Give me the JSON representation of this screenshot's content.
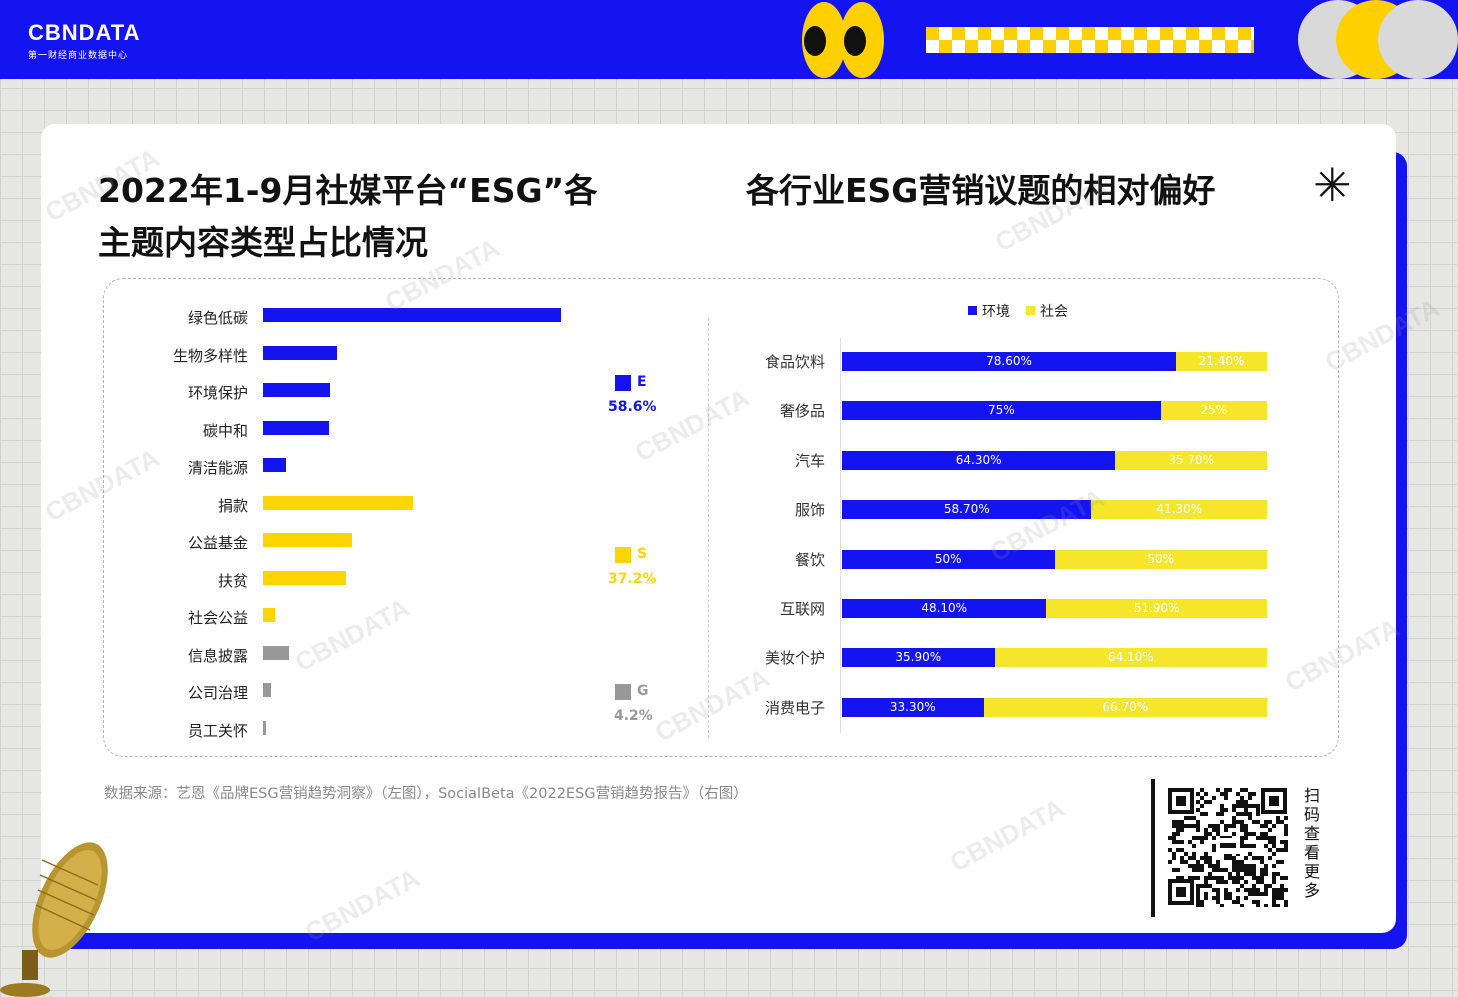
{
  "header": {
    "brand": "CBNDATA",
    "brand_sub": "第一财经商业数据中心"
  },
  "left_title_line1": "2022年1-9月社媒平台“ESG”各",
  "left_title_line2": "主题内容类型占比情况",
  "right_title": "各行业ESG营销议题的相对偏好",
  "chart_data": [
    {
      "type": "bar",
      "orientation": "horizontal",
      "title": "2022年1-9月社媒平台“ESG”各主题内容类型占比情况",
      "categories": [
        "绿色低碳",
        "生物多样性",
        "环境保护",
        "碳中和",
        "清洁能源",
        "捐款",
        "公益基金",
        "扶贫",
        "社会公益",
        "信息披露",
        "公司治理",
        "员工关怀"
      ],
      "values": [
        23.0,
        5.7,
        5.2,
        5.1,
        1.8,
        11.6,
        6.9,
        6.4,
        0.9,
        2.0,
        0.6,
        0.2
      ],
      "groups": [
        "E",
        "E",
        "E",
        "E",
        "E",
        "S",
        "S",
        "S",
        "S",
        "G",
        "G",
        "G"
      ],
      "colors": {
        "E": "#1414f0",
        "S": "#ffd500",
        "G": "#999999"
      },
      "group_totals": [
        {
          "name": "E",
          "value": "58.6%",
          "color": "#1414f0"
        },
        {
          "name": "S",
          "value": "37.2%",
          "color": "#ffd500"
        },
        {
          "name": "G",
          "value": "4.2%",
          "color": "#999999"
        }
      ]
    },
    {
      "type": "bar",
      "orientation": "horizontal",
      "stacked": true,
      "title": "各行业ESG营销议题的相对偏好",
      "categories": [
        "食品饮料",
        "奢侈品",
        "汽车",
        "服饰",
        "餐饮",
        "互联网",
        "美妆个护",
        "消费电子"
      ],
      "series": [
        {
          "name": "环境",
          "color": "#1414f0",
          "values": [
            78.6,
            75,
            64.3,
            58.7,
            50,
            48.1,
            35.9,
            33.3
          ],
          "labels": [
            "78.60%",
            "75%",
            "64.30%",
            "58.70%",
            "50%",
            "48.10%",
            "35.90%",
            "33.30%"
          ]
        },
        {
          "name": "社会",
          "color": "#f5e62c",
          "values": [
            21.4,
            25,
            35.7,
            41.3,
            50,
            51.9,
            64.1,
            66.7
          ],
          "labels": [
            "21.40%",
            "25%",
            "35.70%",
            "41.30%",
            "50%",
            "51.90%",
            "64.10%",
            "66.70%"
          ]
        }
      ],
      "legend": "top"
    }
  ],
  "source_text": "数据来源：艺恩《品牌ESG营销趋势洞察》（左图），SocialBeta《2022ESG营销趋势报告》（右图）",
  "qr_label": "扫码查看更多",
  "asterisk": "✳"
}
